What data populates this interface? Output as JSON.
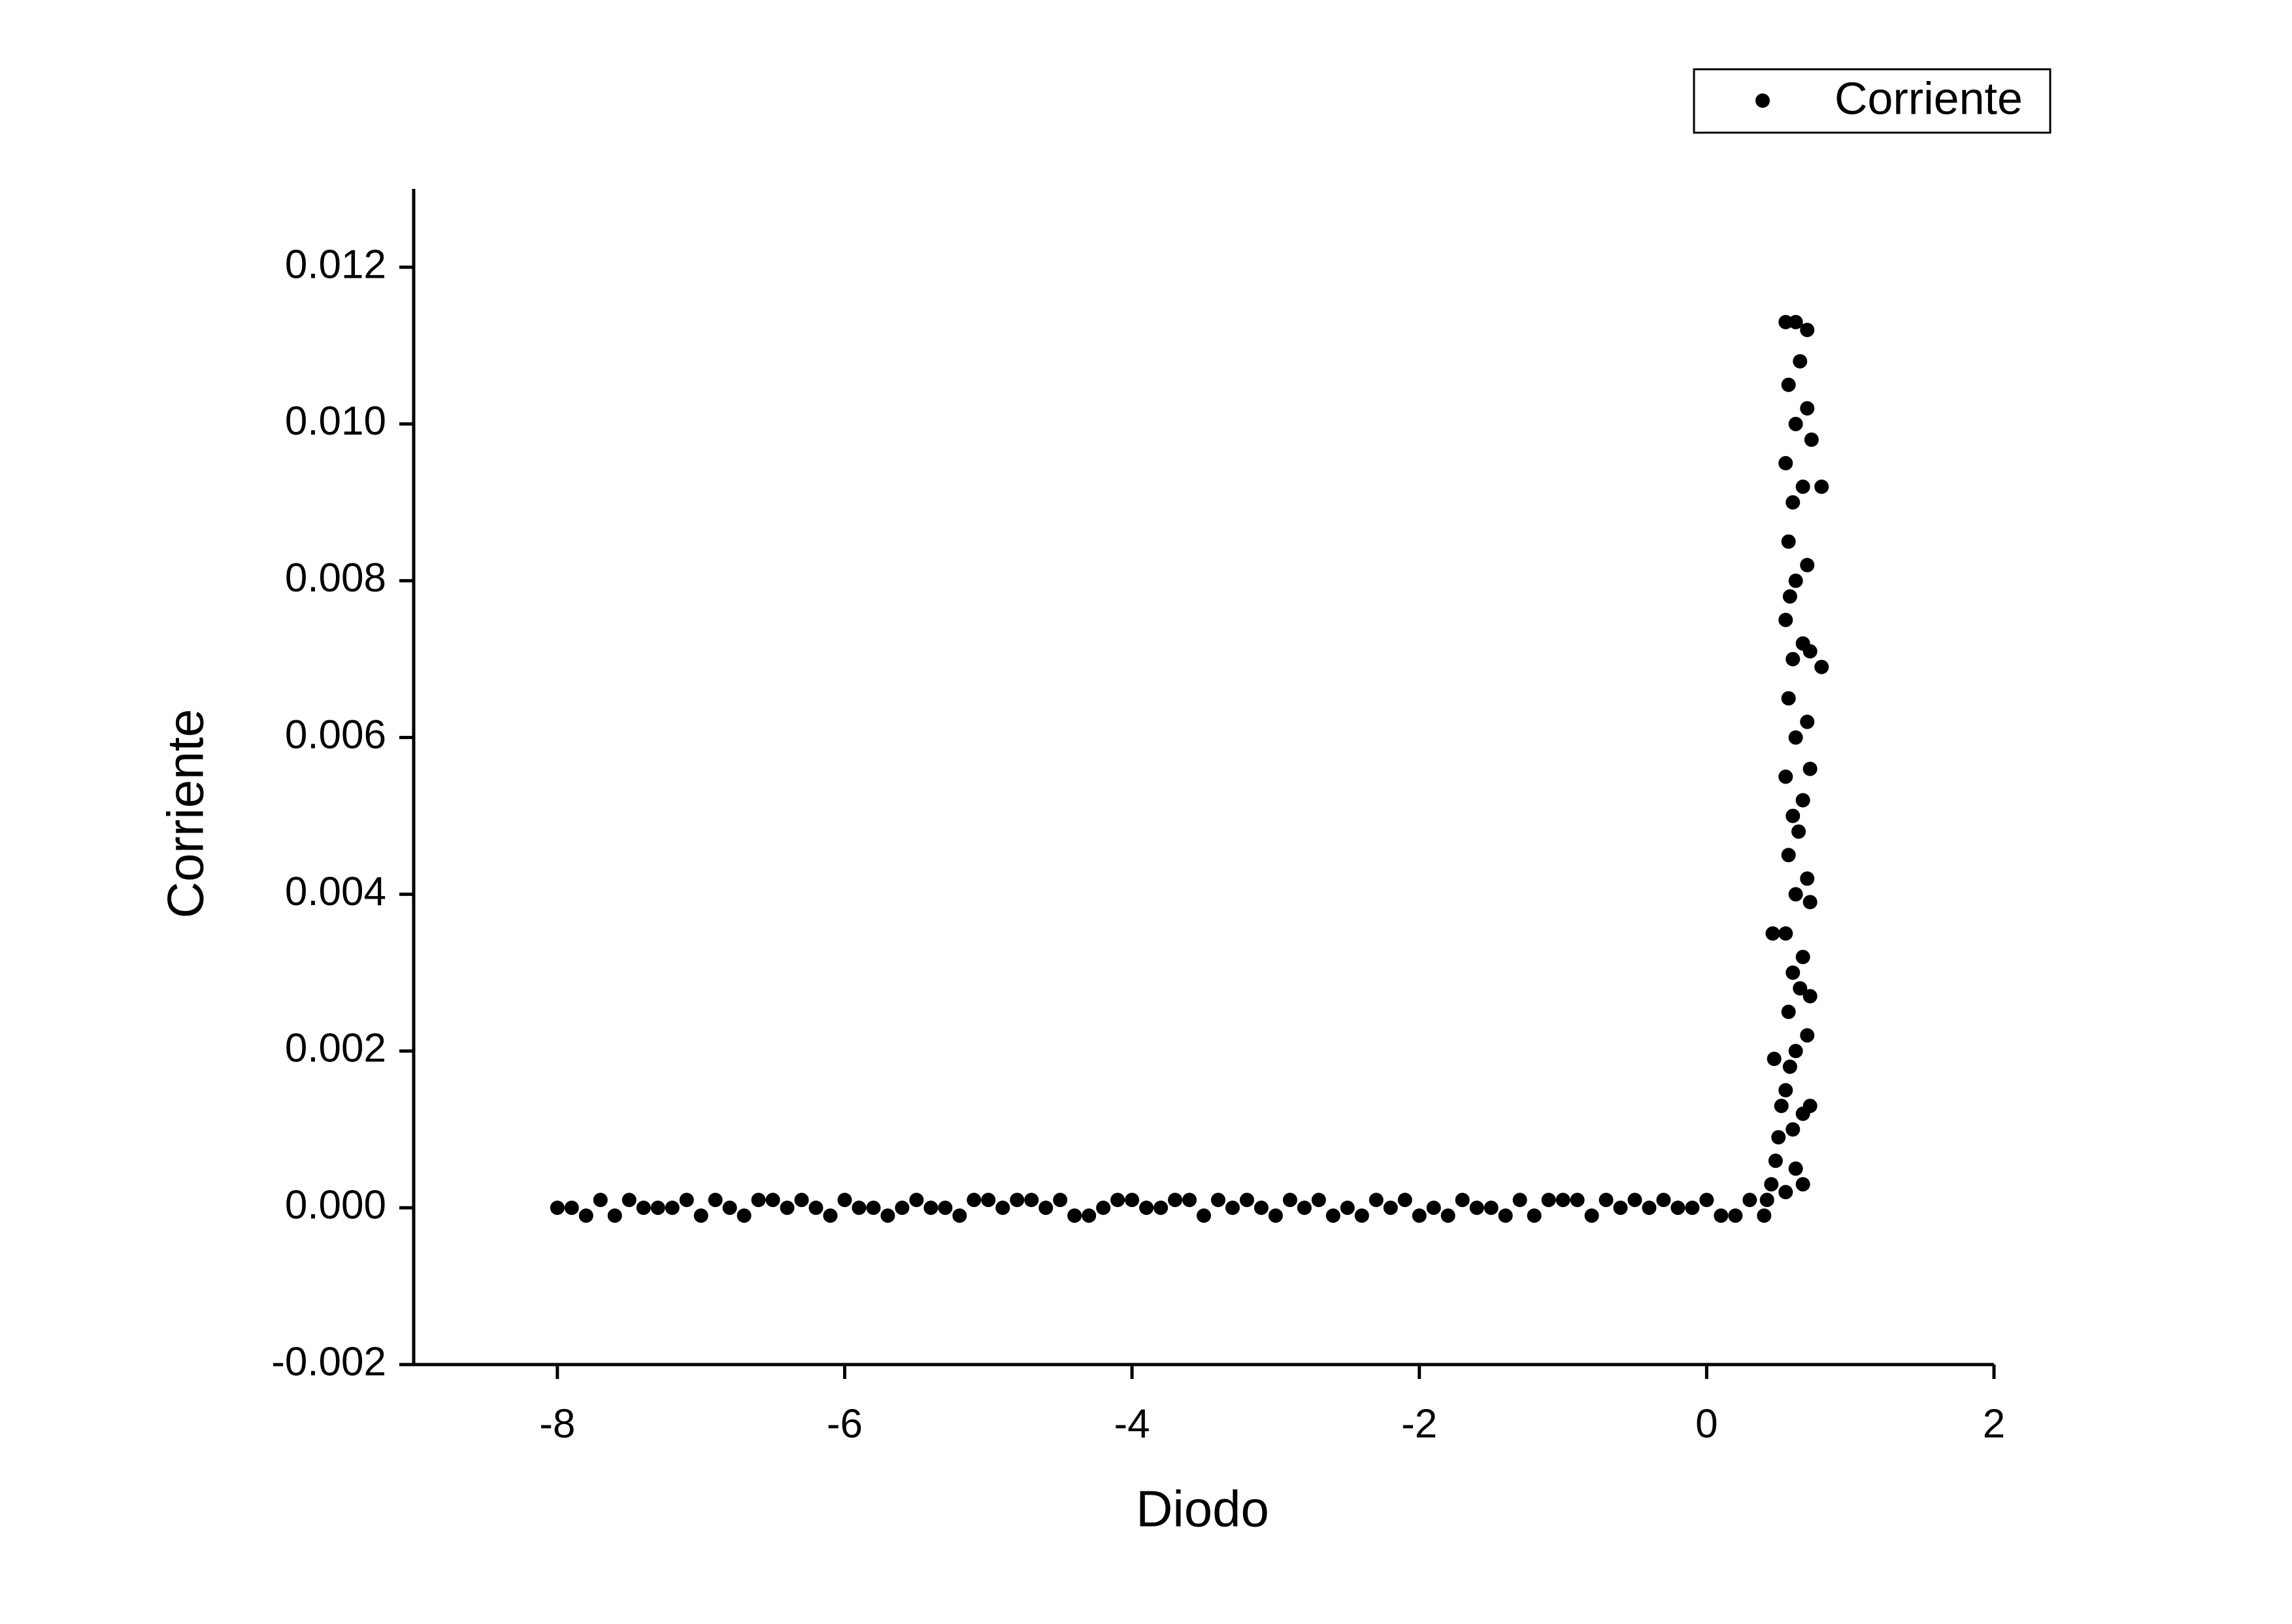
{
  "chart_data": {
    "type": "scatter",
    "xlabel": "Diodo",
    "ylabel": "Corriente",
    "xlim": [
      -9,
      2
    ],
    "xticks": [
      -8,
      -6,
      -4,
      -2,
      0,
      2
    ],
    "ylim": [
      -0.002,
      0.013
    ],
    "yticks": [
      -0.002,
      {
        "value": 0,
        "label": "0.000"
      },
      0.002,
      0.004,
      0.006,
      0.008,
      {
        "value": 0.01,
        "label": "0.010"
      },
      0.012
    ],
    "legend": "upper right",
    "grid": false,
    "x": [
      -8,
      -7.9,
      -7.8,
      -7.7,
      -7.6,
      -7.5,
      -7.4,
      -7.3,
      -7.2,
      -7.1,
      -7,
      -6.9,
      -6.8,
      -6.7,
      -6.6,
      -6.5,
      -6.4,
      -6.3,
      -6.2,
      -6.1,
      -6,
      -5.9,
      -5.8,
      -5.7,
      -5.6,
      -5.5,
      -5.4,
      -5.3,
      -5.2,
      -5.1,
      -5,
      -4.9,
      -4.8,
      -4.7,
      -4.6,
      -4.5,
      -4.4,
      -4.3,
      -4.2,
      -4.1,
      -4,
      -3.9,
      -3.8,
      -3.7,
      -3.6,
      -3.5,
      -3.4,
      -3.3,
      -3.2,
      -3.1,
      -3,
      -2.9,
      -2.8,
      -2.7,
      -2.6,
      -2.5,
      -2.4,
      -2.3,
      -2.2,
      -2.1,
      -2,
      -1.9,
      -1.8,
      -1.7,
      -1.6,
      -1.5,
      -1.4,
      -1.3,
      -1.2,
      -1.1,
      -1,
      -0.9,
      -0.8,
      -0.7,
      -0.6,
      -0.5,
      -0.4,
      -0.3,
      -0.2,
      -0.1,
      0,
      0.1,
      0.2,
      0.3,
      0.4,
      0.42,
      0.45,
      0.48,
      0.5,
      0.52,
      0.47,
      0.46,
      0.55,
      0.55,
      0.57,
      0.55,
      0.57,
      0.55,
      0.57,
      0.55,
      0.57,
      0.55,
      0.57,
      0.55,
      0.62,
      0.6,
      0.62,
      0.6,
      0.62,
      0.6,
      0.62,
      0.6,
      0.62,
      0.6,
      0.62,
      0.62,
      0.67,
      0.67,
      0.7,
      0.67,
      0.7,
      0.67,
      0.7,
      0.67,
      0.7,
      0.67,
      0.7,
      0.7,
      0.72,
      0.72,
      0.72,
      0.72,
      0.72,
      0.73,
      0.8,
      0.8,
      0.65,
      0.58,
      0.64,
      0.58,
      0.65
    ],
    "series": [
      {
        "name": "Corriente",
        "color": "#000000",
        "values": [
          0,
          0,
          -0.0001,
          0.0001,
          -0.0001,
          0.0001,
          0,
          0,
          0,
          0.0001,
          -0.0001,
          0.0001,
          0,
          -0.0001,
          0.0001,
          0.0001,
          0,
          0.0001,
          0,
          -0.0001,
          0.0001,
          0,
          0,
          -0.0001,
          0,
          0.0001,
          0,
          0,
          -0.0001,
          0.0001,
          0.0001,
          0,
          0.0001,
          0.0001,
          0,
          0.0001,
          -0.0001,
          -0.0001,
          0,
          0.0001,
          0.0001,
          0,
          0,
          0.0001,
          0.0001,
          -0.0001,
          0.0001,
          0,
          0.0001,
          0,
          -0.0001,
          0.0001,
          0,
          0.0001,
          -0.0001,
          0,
          -0.0001,
          0.0001,
          0,
          0.0001,
          -0.0001,
          0,
          -0.0001,
          0.0001,
          0,
          0,
          -0.0001,
          0.0001,
          -0.0001,
          0.0001,
          0.0001,
          0.0001,
          -0.0001,
          0.0001,
          0,
          0.0001,
          0,
          0.0001,
          0,
          0,
          0.0001,
          -0.0001,
          -0.0001,
          0.0001,
          -0.0001,
          0.0001,
          0.0003,
          0.0006,
          0.0009,
          0.0013,
          0.0019,
          0.0035,
          0.0002,
          0.0015,
          0.0025,
          0.0035,
          0.0045,
          0.0055,
          0.0065,
          0.0075,
          0.0085,
          0.0095,
          0.0105,
          0.0113,
          0.0005,
          0.001,
          0.002,
          0.003,
          0.004,
          0.005,
          0.006,
          0.007,
          0.008,
          0.009,
          0.01,
          0.0113,
          0.0003,
          0.0012,
          0.0022,
          0.0032,
          0.0042,
          0.0052,
          0.0062,
          0.0072,
          0.0082,
          0.0092,
          0.0102,
          0.0112,
          0.0013,
          0.0027,
          0.0039,
          0.0056,
          0.0071,
          0.0098,
          0.0092,
          0.0069,
          0.0108,
          0.0078,
          0.0048,
          0.0018,
          0.0028
        ]
      }
    ]
  }
}
